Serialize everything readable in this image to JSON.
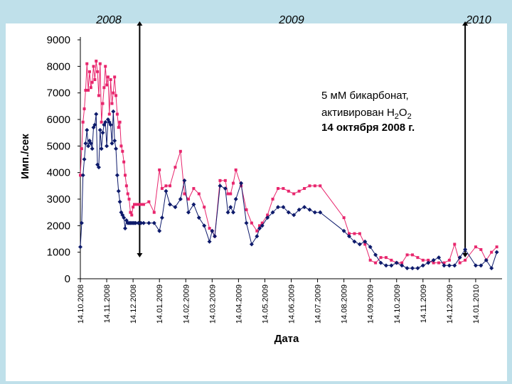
{
  "colors": {
    "background": "#bfe0ea",
    "plot_bg": "#ffffff",
    "series_pink": "#e8266d",
    "series_navy": "#0d1a6b",
    "axis": "#000000"
  },
  "year_labels": [
    "2008",
    "2009",
    "2010"
  ],
  "annotation": {
    "line1": "5 мМ бикарбонат,",
    "line2_prefix": "активирован H",
    "sub1": "2",
    "mid": "O",
    "sub2": "2",
    "line3": "14 октября 2008 г."
  },
  "chart_data": {
    "type": "line",
    "title": "",
    "xlabel": "Дата",
    "ylabel": "Имп./сек",
    "ylim": [
      0,
      9000
    ],
    "yticks": [
      0,
      1000,
      2000,
      3000,
      4000,
      5000,
      6000,
      7000,
      8000,
      9000
    ],
    "x_domain": [
      0,
      16
    ],
    "x_ticks": [
      {
        "x": 0,
        "label": "14.10.2008"
      },
      {
        "x": 1,
        "label": "14.11.2008"
      },
      {
        "x": 2,
        "label": "14.12.2008"
      },
      {
        "x": 3,
        "label": "14.01.2009"
      },
      {
        "x": 4,
        "label": "14.02.2009"
      },
      {
        "x": 5,
        "label": "14.03.2009"
      },
      {
        "x": 6,
        "label": "14.04.2009"
      },
      {
        "x": 7,
        "label": "14.05.2009"
      },
      {
        "x": 8,
        "label": "14.06.2009"
      },
      {
        "x": 9,
        "label": "14.07.2009"
      },
      {
        "x": 10,
        "label": "14.08.2009"
      },
      {
        "x": 11,
        "label": "14.09.2009"
      },
      {
        "x": 12,
        "label": "14.10.2009"
      },
      {
        "x": 13,
        "label": "14.11.2009"
      },
      {
        "x": 14,
        "label": "14.12.2009"
      },
      {
        "x": 15,
        "label": "14.01.2010"
      }
    ],
    "vlines": [
      2.25,
      14.6
    ],
    "series": [
      {
        "name": "pink",
        "x": [
          0,
          0.05,
          0.1,
          0.15,
          0.2,
          0.25,
          0.3,
          0.35,
          0.4,
          0.45,
          0.5,
          0.55,
          0.6,
          0.65,
          0.7,
          0.75,
          0.8,
          0.85,
          0.9,
          0.95,
          1.0,
          1.05,
          1.1,
          1.15,
          1.2,
          1.25,
          1.3,
          1.35,
          1.4,
          1.45,
          1.5,
          1.55,
          1.6,
          1.65,
          1.7,
          1.75,
          1.8,
          1.85,
          1.9,
          1.95,
          2.0,
          2.05,
          2.1,
          2.2,
          2.3,
          2.4,
          2.6,
          2.8,
          3.0,
          3.1,
          3.25,
          3.4,
          3.6,
          3.8,
          3.95,
          4.1,
          4.3,
          4.5,
          4.7,
          4.9,
          5.0,
          5.1,
          5.3,
          5.5,
          5.6,
          5.7,
          5.8,
          5.9,
          6.1,
          6.3,
          6.5,
          6.7,
          6.8,
          6.9,
          7.1,
          7.3,
          7.5,
          7.7,
          7.9,
          8.1,
          8.3,
          8.5,
          8.7,
          8.9,
          9.1,
          10.0,
          10.2,
          10.4,
          10.6,
          10.8,
          11.0,
          11.2,
          11.4,
          11.6,
          11.8,
          12.0,
          12.2,
          12.4,
          12.6,
          12.8,
          13.0,
          13.2,
          13.4,
          13.6,
          13.8,
          14.0,
          14.2,
          14.4,
          14.6,
          15.0,
          15.2,
          15.4,
          15.6,
          15.8
        ],
        "values": [
          3900,
          4900,
          5900,
          6400,
          7100,
          8100,
          7100,
          7800,
          7200,
          7400,
          8000,
          7500,
          8200,
          7800,
          6900,
          8100,
          5900,
          6600,
          7200,
          8000,
          7300,
          7600,
          6200,
          7500,
          6600,
          7000,
          7600,
          6900,
          6200,
          5700,
          5900,
          5000,
          4800,
          4400,
          3900,
          3500,
          3200,
          3000,
          2500,
          2400,
          2700,
          2800,
          2800,
          2800,
          2800,
          2800,
          2900,
          2500,
          4100,
          3400,
          3500,
          3500,
          4200,
          4800,
          3200,
          3000,
          3400,
          3200,
          2700,
          1900,
          1800,
          1600,
          3700,
          3700,
          3200,
          3200,
          3600,
          4100,
          3500,
          2600,
          2100,
          1800,
          2000,
          2100,
          2400,
          3000,
          3400,
          3400,
          3300,
          3200,
          3300,
          3400,
          3500,
          3500,
          3500,
          2300,
          1700,
          1700,
          1700,
          1300,
          700,
          600,
          800,
          800,
          700,
          600,
          600,
          900,
          900,
          800,
          700,
          700,
          600,
          600,
          600,
          700,
          1300,
          600,
          700,
          1200,
          1100,
          700,
          1000,
          1200
        ]
      },
      {
        "name": "navy",
        "x": [
          0,
          0.05,
          0.1,
          0.15,
          0.2,
          0.25,
          0.3,
          0.35,
          0.4,
          0.45,
          0.5,
          0.55,
          0.6,
          0.65,
          0.7,
          0.75,
          0.8,
          0.85,
          0.9,
          0.95,
          1.0,
          1.05,
          1.1,
          1.15,
          1.2,
          1.25,
          1.3,
          1.35,
          1.4,
          1.45,
          1.5,
          1.55,
          1.6,
          1.65,
          1.7,
          1.75,
          1.8,
          1.85,
          1.9,
          1.95,
          2.0,
          2.05,
          2.1,
          2.2,
          2.3,
          2.4,
          2.6,
          2.8,
          3.0,
          3.1,
          3.25,
          3.4,
          3.6,
          3.8,
          3.95,
          4.1,
          4.3,
          4.5,
          4.7,
          4.9,
          5.0,
          5.1,
          5.3,
          5.5,
          5.6,
          5.7,
          5.8,
          5.9,
          6.1,
          6.3,
          6.5,
          6.7,
          6.8,
          6.9,
          7.1,
          7.3,
          7.5,
          7.7,
          7.9,
          8.1,
          8.3,
          8.5,
          8.7,
          8.9,
          9.1,
          10.0,
          10.2,
          10.4,
          10.6,
          10.8,
          11.0,
          11.2,
          11.4,
          11.6,
          11.8,
          12.0,
          12.2,
          12.4,
          12.6,
          12.8,
          13.0,
          13.2,
          13.4,
          13.6,
          13.8,
          14.0,
          14.2,
          14.4,
          14.6,
          15.0,
          15.2,
          15.4,
          15.6,
          15.8
        ],
        "values": [
          1200,
          2100,
          3900,
          4500,
          5100,
          5600,
          5000,
          5200,
          5100,
          4900,
          5700,
          5800,
          6200,
          4300,
          4200,
          5600,
          4900,
          5500,
          5800,
          5900,
          5000,
          6000,
          5900,
          5800,
          5100,
          6300,
          5200,
          4900,
          3900,
          3300,
          2900,
          2500,
          2400,
          2300,
          1900,
          2200,
          2100,
          2100,
          2100,
          2100,
          2100,
          2100,
          2100,
          2100,
          2100,
          2100,
          2100,
          2100,
          1800,
          2300,
          3300,
          2800,
          2700,
          3000,
          3700,
          2500,
          2800,
          2300,
          2000,
          1400,
          1800,
          1600,
          3500,
          3400,
          2500,
          2700,
          2500,
          3000,
          3600,
          2100,
          1300,
          1600,
          1900,
          2000,
          2300,
          2500,
          2700,
          2700,
          2500,
          2400,
          2600,
          2700,
          2600,
          2500,
          2500,
          1800,
          1600,
          1400,
          1300,
          1400,
          1200,
          900,
          600,
          500,
          500,
          600,
          500,
          400,
          400,
          400,
          500,
          600,
          700,
          800,
          500,
          500,
          500,
          800,
          1100,
          500,
          500,
          700,
          400,
          1000
        ]
      }
    ]
  }
}
